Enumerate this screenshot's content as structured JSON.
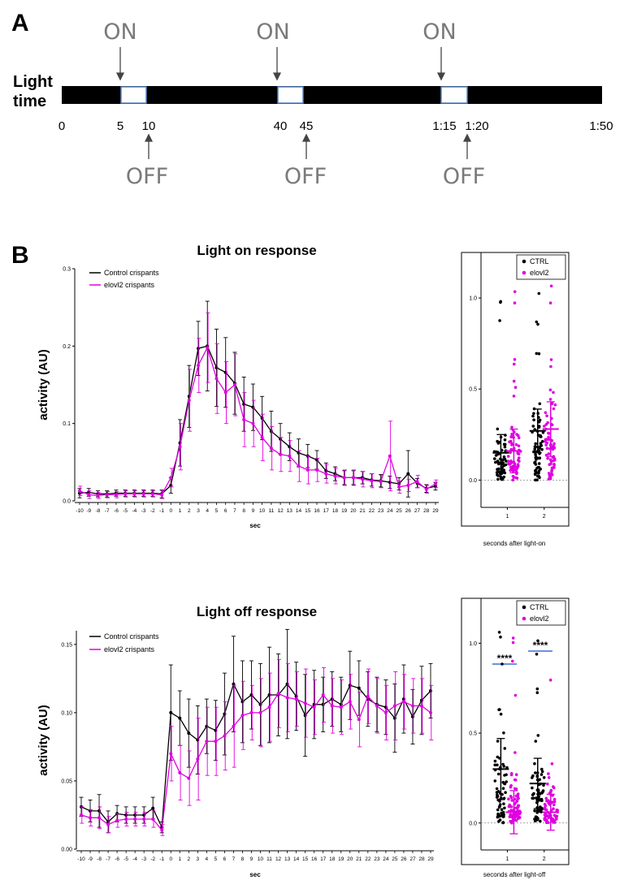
{
  "panel_a": {
    "letter": "A",
    "side_label_line1": "Light",
    "side_label_line2": "time",
    "on_label": "ON",
    "off_label": "OFF",
    "time_ticks": [
      "0",
      "5",
      "10",
      "40",
      "45",
      "1:15",
      "1:20",
      "1:50"
    ],
    "colors": {
      "bar": "#000000",
      "window": "#ffffff",
      "window_border": "#5a86c8",
      "label": "#7a7a7a"
    }
  },
  "panel_b": {
    "letter": "B",
    "sig_label": "****",
    "colors": {
      "ctrl": "#000000",
      "elovl2": "#e000e0",
      "sig_bar": "#3c6fd6"
    }
  },
  "chart_data": [
    {
      "type": "line",
      "title": "Light on response",
      "xlabel": "sec",
      "ylabel": "activity (AU)",
      "ylim": [
        0,
        0.3
      ],
      "yticks": [
        "0.0",
        "0.1",
        "0.2",
        "0.3"
      ],
      "x": [
        -10,
        -9,
        -8,
        -7,
        -6,
        -5,
        -4,
        -3,
        -2,
        -1,
        0,
        1,
        2,
        3,
        4,
        5,
        6,
        7,
        8,
        9,
        10,
        11,
        12,
        13,
        14,
        15,
        16,
        17,
        18,
        19,
        20,
        21,
        22,
        23,
        24,
        25,
        26,
        27,
        28,
        29
      ],
      "series": [
        {
          "name": "Control crispants",
          "color": "#000000",
          "values": [
            0.01,
            0.011,
            0.009,
            0.009,
            0.01,
            0.01,
            0.01,
            0.01,
            0.01,
            0.009,
            0.02,
            0.075,
            0.135,
            0.197,
            0.2,
            0.172,
            0.166,
            0.152,
            0.125,
            0.121,
            0.107,
            0.09,
            0.08,
            0.07,
            0.062,
            0.058,
            0.053,
            0.039,
            0.035,
            0.03,
            0.03,
            0.03,
            0.027,
            0.026,
            0.024,
            0.022,
            0.035,
            0.023,
            0.016,
            0.019
          ],
          "errors": [
            0.006,
            0.005,
            0.004,
            0.004,
            0.004,
            0.004,
            0.004,
            0.004,
            0.004,
            0.005,
            0.01,
            0.03,
            0.04,
            0.035,
            0.058,
            0.05,
            0.045,
            0.04,
            0.035,
            0.03,
            0.028,
            0.026,
            0.02,
            0.018,
            0.018,
            0.015,
            0.012,
            0.01,
            0.009,
            0.009,
            0.009,
            0.008,
            0.008,
            0.008,
            0.008,
            0.008,
            0.03,
            0.006,
            0.005,
            0.005
          ]
        },
        {
          "name": "elovl2 crispants",
          "color": "#e000e0",
          "values": [
            0.013,
            0.008,
            0.007,
            0.008,
            0.008,
            0.009,
            0.009,
            0.009,
            0.009,
            0.008,
            0.03,
            0.07,
            0.13,
            0.175,
            0.198,
            0.158,
            0.14,
            0.15,
            0.105,
            0.1,
            0.082,
            0.068,
            0.06,
            0.058,
            0.045,
            0.04,
            0.04,
            0.035,
            0.032,
            0.03,
            0.03,
            0.028,
            0.026,
            0.025,
            0.058,
            0.018,
            0.02,
            0.025,
            0.015,
            0.022
          ],
          "errors": [
            0.006,
            0.005,
            0.004,
            0.004,
            0.004,
            0.004,
            0.004,
            0.004,
            0.004,
            0.005,
            0.012,
            0.03,
            0.04,
            0.035,
            0.045,
            0.045,
            0.04,
            0.04,
            0.035,
            0.03,
            0.03,
            0.028,
            0.022,
            0.02,
            0.02,
            0.018,
            0.015,
            0.012,
            0.01,
            0.01,
            0.01,
            0.01,
            0.009,
            0.008,
            0.045,
            0.008,
            0.008,
            0.008,
            0.005,
            0.005
          ]
        }
      ]
    },
    {
      "type": "scatter",
      "title": "",
      "xlabel": "seconds after light-on",
      "ylabel": "",
      "ylim": [
        -0.15,
        1.25
      ],
      "yticks": [
        "0.0",
        "0.5",
        "1.0"
      ],
      "categories": [
        "1",
        "2"
      ],
      "legend": [
        "CTRL",
        "elovl2"
      ],
      "series": [
        {
          "name": "CTRL",
          "color": "#000000",
          "means": [
            0.15,
            0.27
          ],
          "sd": [
            0.1,
            0.12
          ]
        },
        {
          "name": "elovl2",
          "color": "#e000e0",
          "means": [
            0.16,
            0.28
          ],
          "sd": [
            0.12,
            0.15
          ]
        }
      ]
    },
    {
      "type": "line",
      "title": "Light off response",
      "xlabel": "sec",
      "ylabel": "activity (AU)",
      "ylim": [
        0,
        0.16
      ],
      "yticks": [
        "0.00",
        "0.05",
        "0.10",
        "0.15"
      ],
      "x": [
        -10,
        -9,
        -8,
        -7,
        -6,
        -5,
        -4,
        -3,
        -2,
        -1,
        0,
        1,
        2,
        3,
        4,
        5,
        6,
        7,
        8,
        9,
        10,
        11,
        12,
        13,
        14,
        15,
        16,
        17,
        18,
        19,
        20,
        21,
        22,
        23,
        24,
        25,
        26,
        27,
        28,
        29
      ],
      "series": [
        {
          "name": "Control crispants",
          "color": "#000000",
          "values": [
            0.031,
            0.028,
            0.028,
            0.02,
            0.026,
            0.025,
            0.025,
            0.025,
            0.03,
            0.016,
            0.1,
            0.096,
            0.085,
            0.08,
            0.09,
            0.087,
            0.099,
            0.121,
            0.108,
            0.113,
            0.106,
            0.113,
            0.113,
            0.121,
            0.112,
            0.098,
            0.106,
            0.106,
            0.11,
            0.106,
            0.12,
            0.118,
            0.11,
            0.106,
            0.104,
            0.096,
            0.11,
            0.097,
            0.109,
            0.116
          ],
          "errors": [
            0.007,
            0.008,
            0.012,
            0.008,
            0.006,
            0.006,
            0.006,
            0.006,
            0.008,
            0.004,
            0.035,
            0.02,
            0.025,
            0.025,
            0.02,
            0.022,
            0.03,
            0.035,
            0.03,
            0.025,
            0.03,
            0.035,
            0.03,
            0.04,
            0.025,
            0.03,
            0.025,
            0.02,
            0.02,
            0.02,
            0.025,
            0.02,
            0.02,
            0.02,
            0.02,
            0.025,
            0.025,
            0.02,
            0.025,
            0.02
          ]
        },
        {
          "name": "elovl2 crispants",
          "color": "#e000e0",
          "values": [
            0.025,
            0.023,
            0.023,
            0.018,
            0.021,
            0.022,
            0.022,
            0.022,
            0.022,
            0.014,
            0.07,
            0.056,
            0.052,
            0.066,
            0.079,
            0.079,
            0.083,
            0.09,
            0.098,
            0.1,
            0.1,
            0.104,
            0.114,
            0.111,
            0.11,
            0.107,
            0.104,
            0.113,
            0.105,
            0.104,
            0.108,
            0.095,
            0.112,
            0.105,
            0.1,
            0.105,
            0.108,
            0.105,
            0.105,
            0.1
          ],
          "errors": [
            0.006,
            0.006,
            0.008,
            0.006,
            0.005,
            0.005,
            0.005,
            0.005,
            0.006,
            0.004,
            0.02,
            0.02,
            0.02,
            0.03,
            0.025,
            0.025,
            0.025,
            0.03,
            0.025,
            0.02,
            0.025,
            0.025,
            0.025,
            0.025,
            0.02,
            0.025,
            0.02,
            0.02,
            0.02,
            0.02,
            0.02,
            0.02,
            0.02,
            0.02,
            0.02,
            0.025,
            0.02,
            0.02,
            0.02,
            0.02
          ]
        }
      ]
    },
    {
      "type": "scatter",
      "title": "",
      "xlabel": "seconds after light-off",
      "ylabel": "",
      "ylim": [
        -0.15,
        1.25
      ],
      "yticks": [
        "0.0",
        "0.5",
        "1.0"
      ],
      "categories": [
        "1",
        "2"
      ],
      "legend": [
        "CTRL",
        "elovl2"
      ],
      "series": [
        {
          "name": "CTRL",
          "color": "#000000",
          "means": [
            0.3,
            0.22
          ],
          "sd": [
            0.17,
            0.14
          ]
        },
        {
          "name": "elovl2",
          "color": "#e000e0",
          "means": [
            0.06,
            0.06
          ],
          "sd": [
            0.12,
            0.1
          ]
        }
      ]
    }
  ]
}
